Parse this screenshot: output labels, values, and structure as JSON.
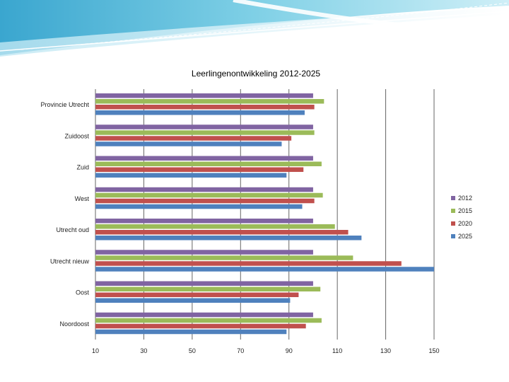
{
  "chart_data": {
    "type": "bar",
    "orientation": "horizontal",
    "title": "Leerlingenontwikkeling 2012-2025",
    "xlabel": "",
    "ylabel": "",
    "xlim": [
      10,
      150
    ],
    "xticks": [
      "10",
      "30",
      "50",
      "70",
      "90",
      "110",
      "130",
      "150"
    ],
    "grid": true,
    "legend_position": "right",
    "categories": [
      "Provincie Utrecht",
      "Zuidoost",
      "Zuid",
      "West",
      "Utrecht oud",
      "Utrecht nieuw",
      "Oost",
      "Noordoost"
    ],
    "series": [
      {
        "name": "2012",
        "color": "#8064a2",
        "values": [
          100,
          100,
          100,
          100,
          100,
          100,
          100,
          100
        ]
      },
      {
        "name": "2015",
        "color": "#9bbb59",
        "values": [
          104.5,
          100.5,
          103.5,
          104,
          109,
          116.5,
          103,
          103.5
        ]
      },
      {
        "name": "2020",
        "color": "#c0504d",
        "values": [
          100.5,
          91,
          96,
          100.5,
          114.5,
          136.5,
          94,
          97
        ]
      },
      {
        "name": "2025",
        "color": "#4f81bd",
        "values": [
          96.5,
          87,
          89,
          95.5,
          120,
          150,
          90.5,
          89
        ]
      }
    ]
  }
}
